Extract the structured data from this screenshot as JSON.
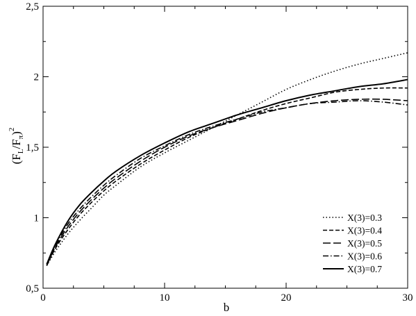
{
  "chart_data": {
    "type": "line",
    "xlabel": "b",
    "ylabel": {
      "open": "(F",
      "sub1": "L",
      "mid": "/F",
      "sub2": "π",
      "close": ")",
      "sup": "2"
    },
    "xlim": [
      0,
      30
    ],
    "ylim": [
      0.5,
      2.5
    ],
    "x_ticks": [
      0,
      10,
      20,
      30
    ],
    "x_tick_labels": [
      "0",
      "10",
      "20",
      "30"
    ],
    "y_ticks": [
      0.5,
      1.0,
      1.5,
      2.0,
      2.5
    ],
    "y_tick_labels": [
      "0,5",
      "1",
      "1,5",
      "2",
      "2,5"
    ],
    "grid": false,
    "legend_position": "bottom-right",
    "series": [
      {
        "name": "X(3)=0.3",
        "dash": "dotted",
        "x": [
          0.3,
          1,
          2,
          3,
          4,
          5,
          6,
          8,
          10,
          12,
          14,
          16,
          18,
          20,
          22,
          24,
          26,
          28,
          30
        ],
        "y": [
          0.66,
          0.76,
          0.88,
          0.98,
          1.07,
          1.16,
          1.23,
          1.36,
          1.46,
          1.55,
          1.64,
          1.73,
          1.82,
          1.91,
          1.98,
          2.04,
          2.09,
          2.13,
          2.17
        ]
      },
      {
        "name": "X(3)=0.4",
        "dash": "dashed",
        "x": [
          0.3,
          1,
          2,
          3,
          4,
          5,
          6,
          8,
          10,
          12,
          14,
          16,
          18,
          20,
          22,
          24,
          26,
          28,
          30
        ],
        "y": [
          0.66,
          0.78,
          0.91,
          1.02,
          1.11,
          1.19,
          1.26,
          1.38,
          1.48,
          1.57,
          1.64,
          1.7,
          1.76,
          1.81,
          1.85,
          1.89,
          1.91,
          1.92,
          1.92
        ]
      },
      {
        "name": "X(3)=0.5",
        "dash": "long-dash",
        "x": [
          0.3,
          1,
          2,
          3,
          4,
          5,
          6,
          8,
          10,
          12,
          14,
          16,
          18,
          20,
          22,
          24,
          26,
          28,
          30
        ],
        "y": [
          0.66,
          0.79,
          0.93,
          1.04,
          1.13,
          1.21,
          1.28,
          1.4,
          1.5,
          1.58,
          1.64,
          1.69,
          1.74,
          1.78,
          1.81,
          1.83,
          1.84,
          1.84,
          1.83
        ]
      },
      {
        "name": "X(3)=0.6",
        "dash": "dash-dot",
        "x": [
          0.3,
          1,
          2,
          3,
          4,
          5,
          6,
          8,
          10,
          12,
          14,
          16,
          18,
          20,
          22,
          24,
          26,
          28,
          30
        ],
        "y": [
          0.67,
          0.8,
          0.95,
          1.06,
          1.15,
          1.23,
          1.3,
          1.42,
          1.51,
          1.59,
          1.65,
          1.7,
          1.75,
          1.78,
          1.81,
          1.82,
          1.83,
          1.82,
          1.8
        ]
      },
      {
        "name": "X(3)=0.7",
        "dash": "solid",
        "x": [
          0.3,
          1,
          2,
          3,
          4,
          5,
          6,
          8,
          10,
          12,
          14,
          16,
          18,
          20,
          22,
          24,
          26,
          28,
          30
        ],
        "y": [
          0.67,
          0.81,
          0.97,
          1.09,
          1.18,
          1.26,
          1.33,
          1.44,
          1.53,
          1.61,
          1.67,
          1.73,
          1.78,
          1.83,
          1.87,
          1.9,
          1.93,
          1.95,
          1.98
        ]
      }
    ]
  }
}
